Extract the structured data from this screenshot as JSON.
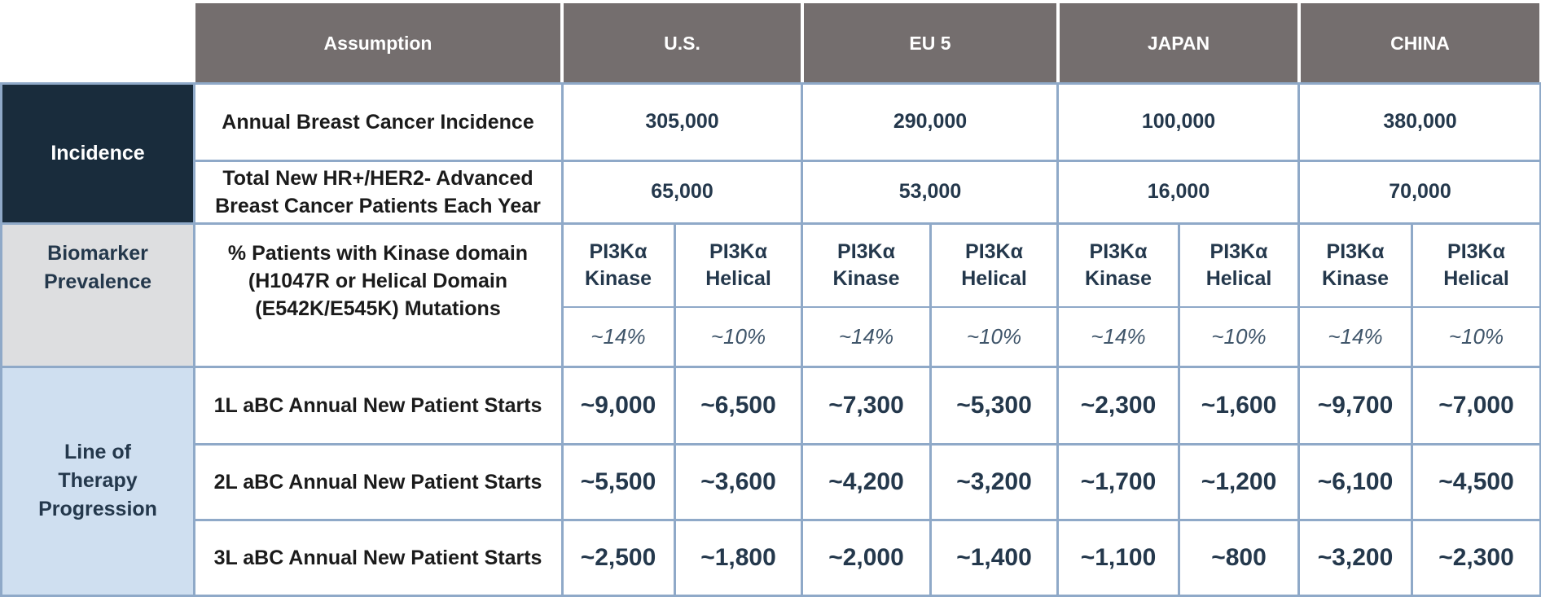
{
  "header": {
    "assumption": "Assumption",
    "regions": [
      "U.S.",
      "EU 5",
      "JAPAN",
      "CHINA"
    ]
  },
  "categories": {
    "incidence": "Incidence",
    "biomarker": "Biomarker Prevalence",
    "lot": "Line of Therapy Progression"
  },
  "rows": {
    "annual_incidence": {
      "label": "Annual Breast Cancer Incidence",
      "values": [
        "305,000",
        "290,000",
        "100,000",
        "380,000"
      ]
    },
    "total_new": {
      "label": "Total New HR+/HER2- Advanced Breast Cancer Patients Each Year",
      "values": [
        "65,000",
        "53,000",
        "16,000",
        "70,000"
      ]
    },
    "biomarker": {
      "label": "% Patients with Kinase domain (H1047R or Helical Domain (E542K/E545K) Mutations",
      "mutation_labels": [
        "PI3Kα Kinase",
        "PI3Kα Helical"
      ],
      "values": [
        "~14%",
        "~10%",
        "~14%",
        "~10%",
        "~14%",
        "~10%",
        "~14%",
        "~10%"
      ]
    },
    "lot": [
      {
        "label": "1L aBC Annual New Patient Starts",
        "values": [
          "~9,000",
          "~6,500",
          "~7,300",
          "~5,300",
          "~2,300",
          "~1,600",
          "~9,700",
          "~7,000"
        ]
      },
      {
        "label": "2L aBC Annual New Patient Starts",
        "values": [
          "~5,500",
          "~3,600",
          "~4,200",
          "~3,200",
          "~1,700",
          "~1,200",
          "~6,100",
          "~4,500"
        ]
      },
      {
        "label": "3L aBC Annual New Patient Starts",
        "values": [
          "~2,500",
          "~1,800",
          "~2,000",
          "~1,400",
          "~1,100",
          "~800",
          "~3,200",
          "~2,300"
        ]
      }
    ]
  }
}
